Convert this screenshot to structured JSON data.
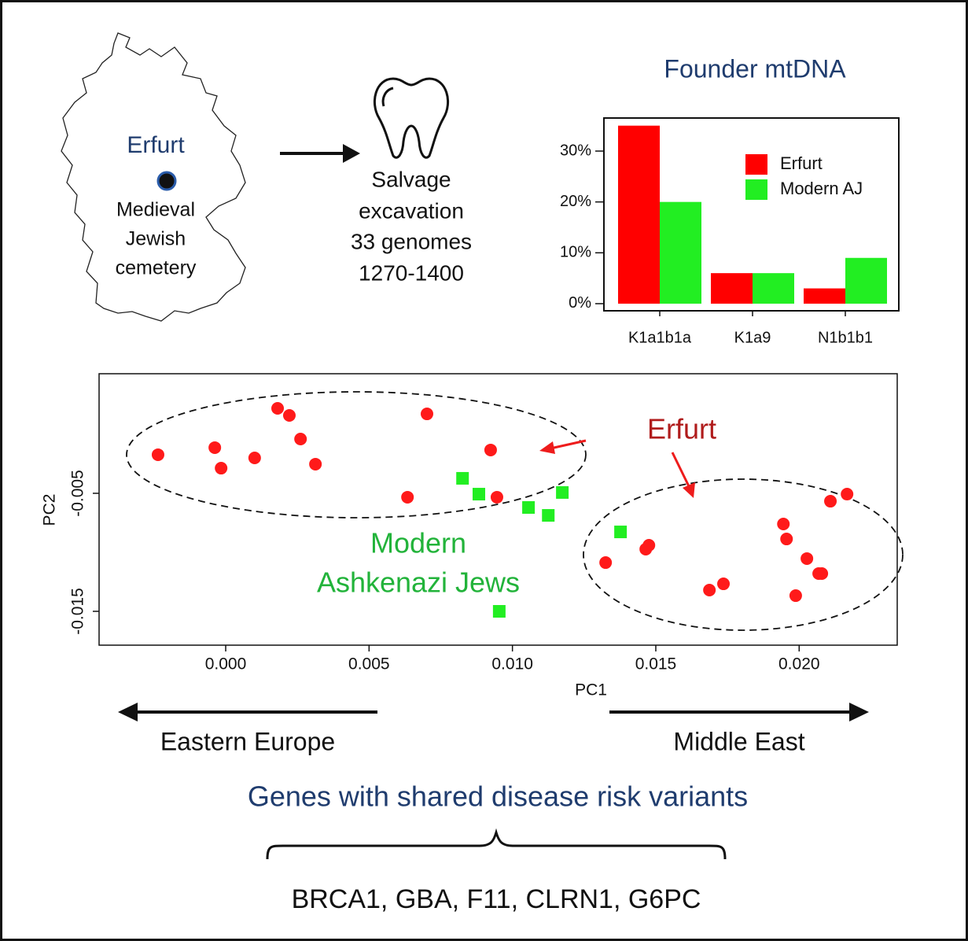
{
  "map_label": "Erfurt",
  "site_label": [
    "Medieval",
    "Jewish",
    "cemetery"
  ],
  "sample_info": [
    "Salvage",
    "excavation",
    "33 genomes",
    "1270-1400"
  ],
  "direction_left": "Eastern Europe",
  "direction_right": "Middle East",
  "genes_title": "Genes with shared disease risk variants",
  "genes_list": "BRCA1, GBA, F11, CLRN1, G6PC",
  "chart_data": [
    {
      "type": "bar",
      "title": "Founder mtDNA",
      "categories": [
        "K1a1b1a",
        "K1a9",
        "N1b1b1"
      ],
      "series": [
        {
          "name": "Erfurt",
          "color": "#ff0000",
          "values": [
            35,
            6,
            3
          ]
        },
        {
          "name": "Modern AJ",
          "color": "#22ee22",
          "values": [
            20,
            6,
            9
          ]
        }
      ],
      "ylim": [
        -1.4,
        36.5
      ],
      "yticks": [
        {
          "value": 0,
          "label": "0%"
        },
        {
          "value": 10,
          "label": "10%"
        },
        {
          "value": 20,
          "label": "20%"
        },
        {
          "value": 30,
          "label": "30%"
        }
      ],
      "legend": "top-right"
    },
    {
      "type": "scatter",
      "xlabel": "PC1",
      "ylabel": "PC2",
      "series": [
        {
          "color": "#ff1a1a",
          "marker": "circle",
          "x": [
            -0.00236,
            -0.00038,
            -0.00016,
            0.00101,
            0.00181,
            0.00222,
            0.00261,
            0.00313,
            0.00634,
            0.00702,
            0.00924,
            0.00946,
            0.01325,
            0.01465,
            0.01476,
            0.01687,
            0.01736,
            0.01945,
            0.01956,
            0.01988,
            0.02027,
            0.02068,
            0.02079,
            0.02109,
            0.02167
          ],
          "y": [
            -0.00173,
            -0.00113,
            -0.00287,
            -0.002,
            0.0022,
            0.0016,
            -0.0004,
            -0.00253,
            -0.00533,
            0.00173,
            -0.00133,
            -0.00533,
            -0.01087,
            -0.00973,
            -0.0094,
            -0.0132,
            -0.01267,
            -0.0076,
            -0.00887,
            -0.01367,
            -0.01053,
            -0.0118,
            -0.0118,
            -0.00567,
            -0.00507
          ]
        },
        {
          "color": "#22ee22",
          "marker": "square",
          "x": [
            0.00826,
            0.00883,
            0.01056,
            0.01125,
            0.01174,
            0.01377,
            0.00954
          ],
          "y": [
            -0.00373,
            -0.00507,
            -0.0062,
            -0.00687,
            -0.00493,
            -0.00827,
            -0.015
          ]
        }
      ],
      "xlim": [
        -0.004416,
        0.02342
      ],
      "ylim": [
        -0.017867,
        0.005133
      ],
      "xticks": [
        {
          "value": 0,
          "label": "0.000"
        },
        0.005,
        {
          "value": 0.01,
          "label": "0.010"
        },
        0.015,
        {
          "value": 0.02,
          "label": "0.020"
        }
      ],
      "yticks": [
        -0.005,
        -0.015
      ],
      "annotations": [
        {
          "text": [
            "Erfurt"
          ],
          "color": "#b01c1c"
        },
        {
          "text": [
            "Modern",
            "Ashkenazi Jews"
          ],
          "color": "#22b33a"
        }
      ]
    }
  ]
}
